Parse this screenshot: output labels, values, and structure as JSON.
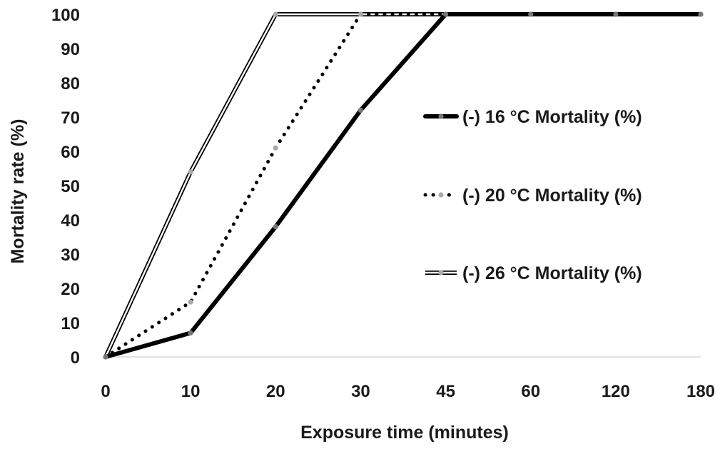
{
  "chart_data": {
    "type": "line",
    "title": "",
    "xlabel": "Exposure time (minutes)",
    "ylabel": "Mortality rate (%)",
    "categories": [
      "0",
      "10",
      "20",
      "30",
      "45",
      "60",
      "120",
      "180"
    ],
    "ylim": [
      0,
      100
    ],
    "yticks": [
      "0",
      "10",
      "20",
      "30",
      "40",
      "50",
      "60",
      "70",
      "80",
      "90",
      "100"
    ],
    "grid": false,
    "legend_position": "right",
    "series": [
      {
        "name": "(-) 16 °C  Mortality (%)",
        "style": "solid-thick",
        "color": "#000000",
        "marker_color": "#777777",
        "values": [
          0,
          7,
          38,
          72,
          100,
          100,
          100,
          100
        ]
      },
      {
        "name": "(-) 20 °C  Mortality (%)",
        "style": "dotted",
        "color": "#000000",
        "marker_color": "#aaaaaa",
        "values": [
          0,
          16,
          61,
          100,
          100,
          100,
          100,
          100
        ]
      },
      {
        "name": "(-) 26 °C  Mortality (%)",
        "style": "double",
        "color": "#000000",
        "marker_color": "#aaaaaa",
        "values": [
          0,
          54,
          100,
          100,
          100,
          100,
          100,
          100
        ]
      }
    ]
  }
}
